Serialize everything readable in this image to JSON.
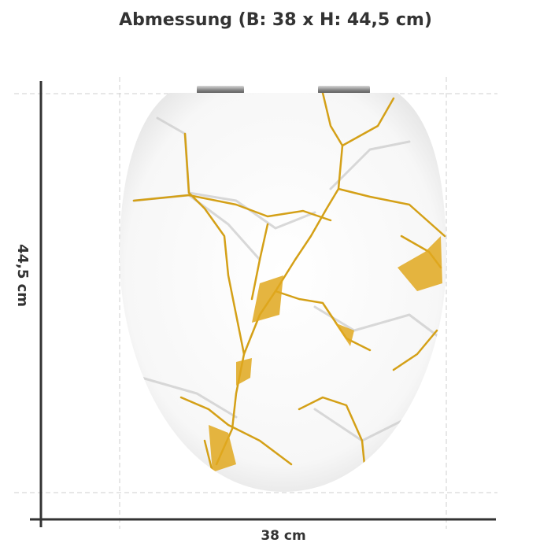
{
  "title": "Abmessung  (B: 38 x H: 44,5 cm)",
  "dimensions": {
    "width_label": "38 cm",
    "height_label": "44,5 cm"
  }
}
